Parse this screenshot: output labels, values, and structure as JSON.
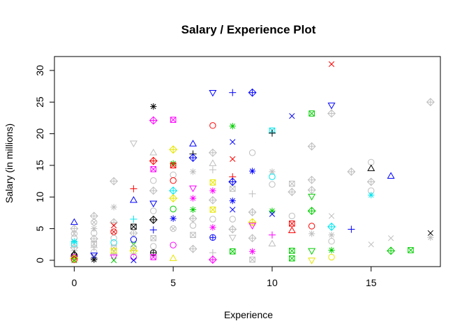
{
  "chart_data": {
    "type": "scatter",
    "title": "Salary / Experience Plot",
    "xlabel": "Experience",
    "ylabel": "Salary (in millions)",
    "xlim": [
      -1,
      18.5
    ],
    "ylim": [
      -1,
      32.2
    ],
    "xticks": [
      0,
      5,
      10,
      15
    ],
    "yticks": [
      0,
      5,
      10,
      15,
      20,
      25,
      30
    ],
    "grid": false,
    "legend": "none",
    "colors": {
      "black": "#000000",
      "red": "#ff0000",
      "green": "#00cd00",
      "blue": "#0000ff",
      "cyan": "#00e5ee",
      "magenta": "#ff00ff",
      "yellow": "#e6e600",
      "gray": "#bebebe"
    },
    "points": [
      {
        "x": 0,
        "y": 6.0,
        "c": "blue",
        "s": "tri"
      },
      {
        "x": 0,
        "y": 5.0,
        "c": "gray",
        "s": "diamond"
      },
      {
        "x": 0,
        "y": 4.2,
        "c": "gray",
        "s": "cross"
      },
      {
        "x": 0,
        "y": 3.5,
        "c": "gray",
        "s": "circle"
      },
      {
        "x": 0,
        "y": 3.0,
        "c": "cyan",
        "s": "asterisk"
      },
      {
        "x": 0,
        "y": 2.6,
        "c": "cyan",
        "s": "square"
      },
      {
        "x": 0,
        "y": 2.0,
        "c": "gray",
        "s": "diamond"
      },
      {
        "x": 0,
        "y": 1.5,
        "c": "gray",
        "s": "plus"
      },
      {
        "x": 0,
        "y": 1.0,
        "c": "black",
        "s": "tri"
      },
      {
        "x": 0,
        "y": 0.8,
        "c": "black",
        "s": "circleplus"
      },
      {
        "x": 0,
        "y": 0.5,
        "c": "magenta",
        "s": "circle"
      },
      {
        "x": 0,
        "y": 0.3,
        "c": "yellow",
        "s": "diamond"
      },
      {
        "x": 0,
        "y": 0.1,
        "c": "red",
        "s": "circle"
      },
      {
        "x": 0,
        "y": 0.0,
        "c": "green",
        "s": "x"
      },
      {
        "x": 1,
        "y": 7.0,
        "c": "gray",
        "s": "diamond"
      },
      {
        "x": 1,
        "y": 6.0,
        "c": "gray",
        "s": "cross"
      },
      {
        "x": 1,
        "y": 5.0,
        "c": "gray",
        "s": "asterisk"
      },
      {
        "x": 1,
        "y": 4.3,
        "c": "gray",
        "s": "circle"
      },
      {
        "x": 1,
        "y": 3.4,
        "c": "gray",
        "s": "diamond"
      },
      {
        "x": 1,
        "y": 2.6,
        "c": "gray",
        "s": "square"
      },
      {
        "x": 1,
        "y": 2.0,
        "c": "gray",
        "s": "plus"
      },
      {
        "x": 1,
        "y": 1.3,
        "c": "gray",
        "s": "circle"
      },
      {
        "x": 1,
        "y": 0.8,
        "c": "blue",
        "s": "triDown"
      },
      {
        "x": 1,
        "y": 0.6,
        "c": "blue",
        "s": "x"
      },
      {
        "x": 1,
        "y": 0.3,
        "c": "gray",
        "s": "diamond"
      },
      {
        "x": 1,
        "y": 0.1,
        "c": "black",
        "s": "asterisk"
      },
      {
        "x": 2,
        "y": 12.5,
        "c": "gray",
        "s": "diamond"
      },
      {
        "x": 2,
        "y": 8.4,
        "c": "gray",
        "s": "asterisk"
      },
      {
        "x": 2,
        "y": 6.0,
        "c": "gray",
        "s": "diamond"
      },
      {
        "x": 2,
        "y": 5.5,
        "c": "red",
        "s": "x"
      },
      {
        "x": 2,
        "y": 4.5,
        "c": "red",
        "s": "cross"
      },
      {
        "x": 2,
        "y": 3.5,
        "c": "gray",
        "s": "circle"
      },
      {
        "x": 2,
        "y": 2.8,
        "c": "cyan",
        "s": "circle"
      },
      {
        "x": 2,
        "y": 2.0,
        "c": "gray",
        "s": "square"
      },
      {
        "x": 2,
        "y": 1.5,
        "c": "yellow",
        "s": "square"
      },
      {
        "x": 2,
        "y": 1.0,
        "c": "gray",
        "s": "plus"
      },
      {
        "x": 2,
        "y": 0.5,
        "c": "magenta",
        "s": "triDown"
      },
      {
        "x": 2,
        "y": 0.0,
        "c": "green",
        "s": "x"
      },
      {
        "x": 3,
        "y": 18.5,
        "c": "gray",
        "s": "triDown"
      },
      {
        "x": 3,
        "y": 11.3,
        "c": "red",
        "s": "plus"
      },
      {
        "x": 3,
        "y": 9.5,
        "c": "blue",
        "s": "tri"
      },
      {
        "x": 3,
        "y": 6.5,
        "c": "cyan",
        "s": "plus"
      },
      {
        "x": 3,
        "y": 5.3,
        "c": "black",
        "s": "square"
      },
      {
        "x": 3,
        "y": 4.3,
        "c": "gray",
        "s": "diamond"
      },
      {
        "x": 3,
        "y": 3.3,
        "c": "blue",
        "s": "circle"
      },
      {
        "x": 3,
        "y": 2.5,
        "c": "green",
        "s": "x"
      },
      {
        "x": 3,
        "y": 2.0,
        "c": "gray",
        "s": "cross"
      },
      {
        "x": 3,
        "y": 1.5,
        "c": "yellow",
        "s": "diamond"
      },
      {
        "x": 3,
        "y": 1.0,
        "c": "gray",
        "s": "plus"
      },
      {
        "x": 3,
        "y": 0.5,
        "c": "magenta",
        "s": "circle"
      },
      {
        "x": 3,
        "y": 0.0,
        "c": "blue",
        "s": "x"
      },
      {
        "x": 4,
        "y": 24.3,
        "c": "black",
        "s": "asterisk"
      },
      {
        "x": 4,
        "y": 22.1,
        "c": "magenta",
        "s": "diamond"
      },
      {
        "x": 4,
        "y": 17.0,
        "c": "gray",
        "s": "tri"
      },
      {
        "x": 4,
        "y": 15.7,
        "c": "red",
        "s": "diamond"
      },
      {
        "x": 4,
        "y": 14.4,
        "c": "magenta",
        "s": "square"
      },
      {
        "x": 4,
        "y": 12.6,
        "c": "gray",
        "s": "circle"
      },
      {
        "x": 4,
        "y": 11.0,
        "c": "gray",
        "s": "diamond"
      },
      {
        "x": 4,
        "y": 9.0,
        "c": "blue",
        "s": "triDown"
      },
      {
        "x": 4,
        "y": 7.8,
        "c": "gray",
        "s": "circle"
      },
      {
        "x": 4,
        "y": 6.4,
        "c": "black",
        "s": "diamond"
      },
      {
        "x": 4,
        "y": 4.8,
        "c": "blue",
        "s": "plus"
      },
      {
        "x": 4,
        "y": 3.5,
        "c": "gray",
        "s": "square"
      },
      {
        "x": 4,
        "y": 2.2,
        "c": "gray",
        "s": "circle"
      },
      {
        "x": 4,
        "y": 1.2,
        "c": "black",
        "s": "circleplus"
      },
      {
        "x": 4,
        "y": 0.5,
        "c": "magenta",
        "s": "square"
      },
      {
        "x": 5,
        "y": 22.2,
        "c": "magenta",
        "s": "square"
      },
      {
        "x": 5,
        "y": 17.5,
        "c": "yellow",
        "s": "diamond"
      },
      {
        "x": 5,
        "y": 15.3,
        "c": "green",
        "s": "asterisk"
      },
      {
        "x": 5,
        "y": 15.0,
        "c": "red",
        "s": "square"
      },
      {
        "x": 5,
        "y": 13.5,
        "c": "gray",
        "s": "circle"
      },
      {
        "x": 5,
        "y": 12.6,
        "c": "red",
        "s": "circle"
      },
      {
        "x": 5,
        "y": 11.0,
        "c": "cyan",
        "s": "diamond"
      },
      {
        "x": 5,
        "y": 9.8,
        "c": "yellow",
        "s": "diamond"
      },
      {
        "x": 5,
        "y": 8.1,
        "c": "green",
        "s": "circle"
      },
      {
        "x": 5,
        "y": 6.6,
        "c": "blue",
        "s": "asterisk"
      },
      {
        "x": 5,
        "y": 5.0,
        "c": "gray",
        "s": "cross"
      },
      {
        "x": 5,
        "y": 2.4,
        "c": "magenta",
        "s": "circle"
      },
      {
        "x": 5,
        "y": 0.3,
        "c": "yellow",
        "s": "tri"
      },
      {
        "x": 6,
        "y": 18.4,
        "c": "blue",
        "s": "tri"
      },
      {
        "x": 6,
        "y": 16.8,
        "c": "black",
        "s": "plus"
      },
      {
        "x": 6,
        "y": 16.2,
        "c": "blue",
        "s": "diamond"
      },
      {
        "x": 6,
        "y": 14.0,
        "c": "gray",
        "s": "asterisk"
      },
      {
        "x": 6,
        "y": 11.4,
        "c": "magenta",
        "s": "triDown"
      },
      {
        "x": 6,
        "y": 9.8,
        "c": "magenta",
        "s": "asterisk"
      },
      {
        "x": 6,
        "y": 8.0,
        "c": "green",
        "s": "asterisk"
      },
      {
        "x": 6,
        "y": 6.6,
        "c": "gray",
        "s": "diamond"
      },
      {
        "x": 6,
        "y": 5.5,
        "c": "gray",
        "s": "circle"
      },
      {
        "x": 6,
        "y": 4.0,
        "c": "gray",
        "s": "square"
      },
      {
        "x": 6,
        "y": 1.8,
        "c": "gray",
        "s": "diamond"
      },
      {
        "x": 7,
        "y": 26.5,
        "c": "blue",
        "s": "triDown"
      },
      {
        "x": 7,
        "y": 21.3,
        "c": "red",
        "s": "circle"
      },
      {
        "x": 7,
        "y": 17.0,
        "c": "gray",
        "s": "diamond"
      },
      {
        "x": 7,
        "y": 15.3,
        "c": "gray",
        "s": "tri"
      },
      {
        "x": 7,
        "y": 14.3,
        "c": "gray",
        "s": "plus"
      },
      {
        "x": 7,
        "y": 12.3,
        "c": "yellow",
        "s": "square"
      },
      {
        "x": 7,
        "y": 11.0,
        "c": "magenta",
        "s": "asterisk"
      },
      {
        "x": 7,
        "y": 9.5,
        "c": "gray",
        "s": "diamond"
      },
      {
        "x": 7,
        "y": 8.0,
        "c": "yellow",
        "s": "square"
      },
      {
        "x": 7,
        "y": 6.5,
        "c": "gray",
        "s": "circle"
      },
      {
        "x": 7,
        "y": 5.2,
        "c": "magenta",
        "s": "asterisk"
      },
      {
        "x": 7,
        "y": 3.6,
        "c": "blue",
        "s": "circleplus"
      },
      {
        "x": 7,
        "y": 1.2,
        "c": "gray",
        "s": "plus"
      },
      {
        "x": 7,
        "y": 0.1,
        "c": "magenta",
        "s": "diamond"
      },
      {
        "x": 8,
        "y": 26.5,
        "c": "blue",
        "s": "plus"
      },
      {
        "x": 8,
        "y": 21.2,
        "c": "green",
        "s": "asterisk"
      },
      {
        "x": 8,
        "y": 18.7,
        "c": "blue",
        "s": "x"
      },
      {
        "x": 8,
        "y": 16.0,
        "c": "red",
        "s": "x"
      },
      {
        "x": 8,
        "y": 13.2,
        "c": "red",
        "s": "plus"
      },
      {
        "x": 8,
        "y": 12.4,
        "c": "blue",
        "s": "diamond"
      },
      {
        "x": 8,
        "y": 11.3,
        "c": "gray",
        "s": "square"
      },
      {
        "x": 8,
        "y": 9.4,
        "c": "blue",
        "s": "asterisk"
      },
      {
        "x": 8,
        "y": 8.0,
        "c": "blue",
        "s": "x"
      },
      {
        "x": 8,
        "y": 6.5,
        "c": "gray",
        "s": "circle"
      },
      {
        "x": 8,
        "y": 4.9,
        "c": "gray",
        "s": "diamond"
      },
      {
        "x": 8,
        "y": 3.6,
        "c": "gray",
        "s": "triDown"
      },
      {
        "x": 8,
        "y": 1.4,
        "c": "green",
        "s": "square"
      },
      {
        "x": 9,
        "y": 26.5,
        "c": "blue",
        "s": "diamond"
      },
      {
        "x": 9,
        "y": 17.0,
        "c": "gray",
        "s": "circle"
      },
      {
        "x": 9,
        "y": 14.1,
        "c": "blue",
        "s": "asterisk"
      },
      {
        "x": 9,
        "y": 10.5,
        "c": "gray",
        "s": "plus"
      },
      {
        "x": 9,
        "y": 7.6,
        "c": "gray",
        "s": "diamond"
      },
      {
        "x": 9,
        "y": 6.0,
        "c": "yellow",
        "s": "diamond"
      },
      {
        "x": 9,
        "y": 5.5,
        "c": "magenta",
        "s": "triDown"
      },
      {
        "x": 9,
        "y": 3.5,
        "c": "gray",
        "s": "diamond"
      },
      {
        "x": 9,
        "y": 1.4,
        "c": "magenta",
        "s": "asterisk"
      },
      {
        "x": 9,
        "y": 0.1,
        "c": "gray",
        "s": "square"
      },
      {
        "x": 10,
        "y": 20.5,
        "c": "cyan",
        "s": "square"
      },
      {
        "x": 10,
        "y": 20.1,
        "c": "black",
        "s": "plus"
      },
      {
        "x": 10,
        "y": 14.0,
        "c": "gray",
        "s": "asterisk"
      },
      {
        "x": 10,
        "y": 13.2,
        "c": "cyan",
        "s": "circle"
      },
      {
        "x": 10,
        "y": 12.0,
        "c": "gray",
        "s": "circle"
      },
      {
        "x": 10,
        "y": 7.8,
        "c": "green",
        "s": "asterisk"
      },
      {
        "x": 10,
        "y": 7.3,
        "c": "blue",
        "s": "x"
      },
      {
        "x": 10,
        "y": 4.0,
        "c": "magenta",
        "s": "plus"
      },
      {
        "x": 10,
        "y": 2.6,
        "c": "gray",
        "s": "tri"
      },
      {
        "x": 11,
        "y": 22.8,
        "c": "blue",
        "s": "x"
      },
      {
        "x": 11,
        "y": 12.1,
        "c": "gray",
        "s": "square"
      },
      {
        "x": 11,
        "y": 10.8,
        "c": "gray",
        "s": "diamond"
      },
      {
        "x": 11,
        "y": 7.0,
        "c": "gray",
        "s": "circle"
      },
      {
        "x": 11,
        "y": 5.8,
        "c": "red",
        "s": "square"
      },
      {
        "x": 11,
        "y": 4.7,
        "c": "red",
        "s": "tri"
      },
      {
        "x": 11,
        "y": 1.5,
        "c": "green",
        "s": "square"
      },
      {
        "x": 11,
        "y": 0.3,
        "c": "green",
        "s": "square"
      },
      {
        "x": 12,
        "y": 23.2,
        "c": "green",
        "s": "square"
      },
      {
        "x": 12,
        "y": 18.0,
        "c": "gray",
        "s": "diamond"
      },
      {
        "x": 12,
        "y": 12.7,
        "c": "gray",
        "s": "diamond"
      },
      {
        "x": 12,
        "y": 11.1,
        "c": "gray",
        "s": "diamond"
      },
      {
        "x": 12,
        "y": 10.1,
        "c": "green",
        "s": "triDown"
      },
      {
        "x": 12,
        "y": 7.8,
        "c": "green",
        "s": "diamond"
      },
      {
        "x": 12,
        "y": 5.4,
        "c": "red",
        "s": "circle"
      },
      {
        "x": 12,
        "y": 4.2,
        "c": "gray",
        "s": "asterisk"
      },
      {
        "x": 12,
        "y": 1.5,
        "c": "green",
        "s": "triDown"
      },
      {
        "x": 12,
        "y": 0.0,
        "c": "yellow",
        "s": "triDown"
      },
      {
        "x": 13,
        "y": 31.0,
        "c": "red",
        "s": "x"
      },
      {
        "x": 13,
        "y": 24.5,
        "c": "blue",
        "s": "triDown"
      },
      {
        "x": 13,
        "y": 23.2,
        "c": "gray",
        "s": "diamond"
      },
      {
        "x": 13,
        "y": 7.0,
        "c": "gray",
        "s": "x"
      },
      {
        "x": 13,
        "y": 5.3,
        "c": "cyan",
        "s": "diamond"
      },
      {
        "x": 13,
        "y": 4.0,
        "c": "gray",
        "s": "asterisk"
      },
      {
        "x": 13,
        "y": 3.0,
        "c": "gray",
        "s": "circle"
      },
      {
        "x": 13,
        "y": 1.6,
        "c": "green",
        "s": "asterisk"
      },
      {
        "x": 13,
        "y": 0.5,
        "c": "yellow",
        "s": "circle"
      },
      {
        "x": 14,
        "y": 14.0,
        "c": "gray",
        "s": "diamond"
      },
      {
        "x": 14,
        "y": 4.9,
        "c": "blue",
        "s": "plus"
      },
      {
        "x": 15,
        "y": 15.5,
        "c": "gray",
        "s": "circle"
      },
      {
        "x": 15,
        "y": 14.5,
        "c": "black",
        "s": "tri"
      },
      {
        "x": 15,
        "y": 12.4,
        "c": "gray",
        "s": "diamond"
      },
      {
        "x": 15,
        "y": 11.0,
        "c": "gray",
        "s": "circle"
      },
      {
        "x": 15,
        "y": 10.3,
        "c": "cyan",
        "s": "asterisk"
      },
      {
        "x": 15,
        "y": 2.5,
        "c": "gray",
        "s": "x"
      },
      {
        "x": 16,
        "y": 13.3,
        "c": "blue",
        "s": "tri"
      },
      {
        "x": 16,
        "y": 3.5,
        "c": "gray",
        "s": "x"
      },
      {
        "x": 16,
        "y": 1.5,
        "c": "green",
        "s": "diamond"
      },
      {
        "x": 17,
        "y": 1.6,
        "c": "green",
        "s": "square"
      },
      {
        "x": 18,
        "y": 25.0,
        "c": "gray",
        "s": "diamond"
      },
      {
        "x": 18,
        "y": 4.3,
        "c": "black",
        "s": "x"
      },
      {
        "x": 18,
        "y": 3.6,
        "c": "gray",
        "s": "asterisk"
      }
    ]
  }
}
